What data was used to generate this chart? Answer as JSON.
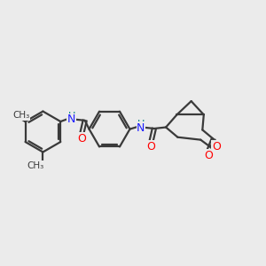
{
  "background_color": "#ebebeb",
  "bond_color": "#3a3a3a",
  "nitrogen_color": "#1a1aff",
  "oxygen_color": "#ff0000",
  "h_color": "#008080",
  "line_width": 1.6,
  "figsize": [
    3.0,
    3.0
  ],
  "dpi": 100,
  "xlim": [
    0,
    10
  ],
  "ylim": [
    0,
    10
  ]
}
